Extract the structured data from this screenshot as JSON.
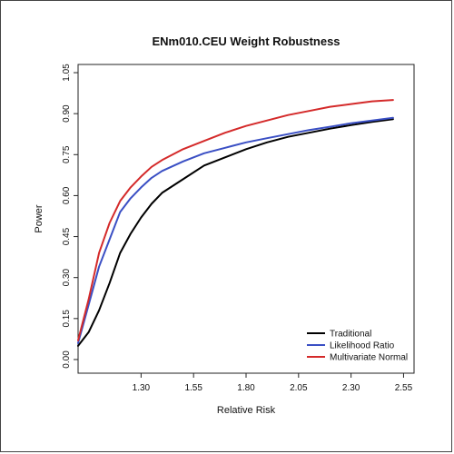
{
  "chart_data": {
    "type": "line",
    "title": "ENm010.CEU Weight Robustness",
    "xlabel": "Relative Risk",
    "ylabel": "Power",
    "xlim": [
      1.0,
      2.6
    ],
    "ylim": [
      -0.05,
      1.08
    ],
    "xticks": [
      "1.30",
      "1.55",
      "1.80",
      "2.05",
      "2.30",
      "2.55"
    ],
    "yticks": [
      "0.00",
      "0.15",
      "0.30",
      "0.45",
      "0.60",
      "0.75",
      "0.90",
      "1.05"
    ],
    "legend_position": "bottom-right",
    "x": [
      1.0,
      1.05,
      1.1,
      1.15,
      1.2,
      1.25,
      1.3,
      1.35,
      1.4,
      1.5,
      1.6,
      1.7,
      1.8,
      1.9,
      2.0,
      2.1,
      2.2,
      2.3,
      2.4,
      2.5
    ],
    "series": [
      {
        "name": "Traditional",
        "color": "#000000",
        "values": [
          0.05,
          0.1,
          0.18,
          0.28,
          0.39,
          0.46,
          0.52,
          0.57,
          0.61,
          0.66,
          0.71,
          0.74,
          0.77,
          0.795,
          0.815,
          0.83,
          0.845,
          0.858,
          0.87,
          0.88
        ]
      },
      {
        "name": "Likelihood Ratio",
        "color": "#3a4fc4",
        "values": [
          0.06,
          0.2,
          0.34,
          0.44,
          0.54,
          0.59,
          0.63,
          0.665,
          0.69,
          0.725,
          0.755,
          0.775,
          0.795,
          0.81,
          0.825,
          0.84,
          0.852,
          0.865,
          0.875,
          0.885
        ]
      },
      {
        "name": "Multivariate Normal",
        "color": "#d42a2a",
        "values": [
          0.07,
          0.22,
          0.39,
          0.5,
          0.58,
          0.63,
          0.67,
          0.705,
          0.73,
          0.77,
          0.8,
          0.83,
          0.855,
          0.875,
          0.895,
          0.91,
          0.925,
          0.935,
          0.945,
          0.95
        ]
      }
    ]
  }
}
